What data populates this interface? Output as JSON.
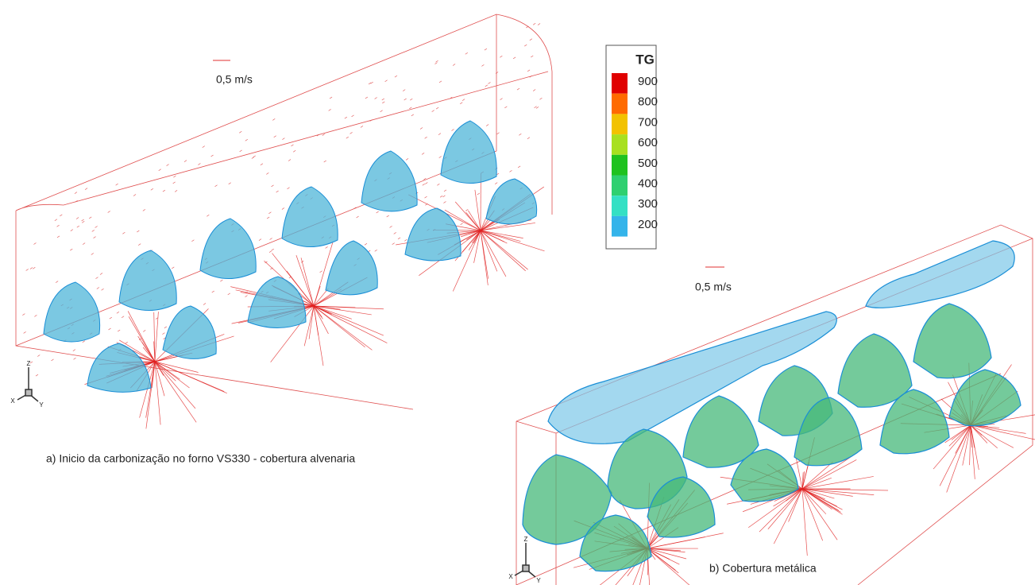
{
  "panel_a": {
    "scale_label": "0,5 m/s",
    "caption": "a) Inicio da carbonização no forno VS330 - cobertura alvenaria",
    "axes": {
      "z": "Z",
      "x": "X",
      "y": "Y"
    }
  },
  "panel_b": {
    "scale_label": "0,5 m/s",
    "caption": "b) Cobertura metálica",
    "axes": {
      "z": "Z",
      "x": "X",
      "y": "Y"
    }
  },
  "legend": {
    "title": "TG",
    "levels": [
      {
        "value": 900,
        "color": "#e00000"
      },
      {
        "value": 800,
        "color": "#ff6a00"
      },
      {
        "value": 700,
        "color": "#f2c200"
      },
      {
        "value": 600,
        "color": "#a8e020"
      },
      {
        "value": 500,
        "color": "#1fc21f"
      },
      {
        "value": 400,
        "color": "#2fd070"
      },
      {
        "value": 300,
        "color": "#34e0c4"
      },
      {
        "value": 200,
        "color": "#34b4ea"
      }
    ]
  }
}
